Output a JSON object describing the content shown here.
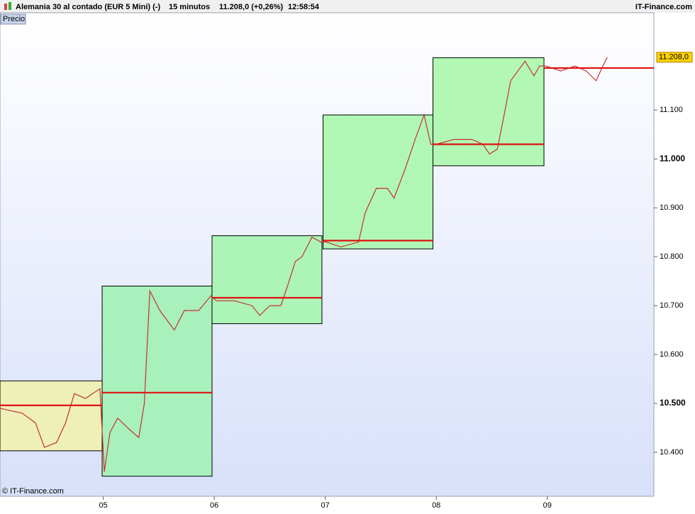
{
  "header": {
    "instrument": "Alemania 30 al contado (EUR 5 Mini) (-)",
    "interval": "15 minutos",
    "quote": "11.208,0 (+0,26%)",
    "time": "12:58:54",
    "brand": "IT-Finance.com"
  },
  "chart_data": {
    "type": "line",
    "panel_label": "Precio",
    "watermark": "© IT-Finance.com",
    "color": "#c83030",
    "x": [
      4.07,
      4.27,
      4.39,
      4.47,
      4.58,
      4.66,
      4.74,
      4.84,
      4.97,
      5.01,
      5.06,
      5.13,
      5.22,
      5.32,
      5.37,
      5.42,
      5.51,
      5.64,
      5.73,
      5.86,
      5.97,
      6.02,
      6.18,
      6.34,
      6.41,
      6.5,
      6.6,
      6.66,
      6.73,
      6.79,
      6.88,
      6.96,
      7.01,
      7.14,
      7.3,
      7.36,
      7.46,
      7.56,
      7.62,
      7.72,
      7.81,
      7.89,
      7.95,
      8.0,
      8.16,
      8.32,
      8.42,
      8.48,
      8.55,
      8.62,
      8.67,
      8.8,
      8.88,
      8.93,
      8.99,
      9.12,
      9.25,
      9.35,
      9.44,
      9.5,
      9.54
    ],
    "values": [
      10490,
      10480,
      10460,
      10410,
      10420,
      10460,
      10520,
      10510,
      10530,
      10360,
      10440,
      10470,
      10450,
      10430,
      10500,
      10730,
      10690,
      10650,
      10690,
      10690,
      10720,
      10710,
      10710,
      10700,
      10680,
      10700,
      10700,
      10740,
      10790,
      10800,
      10840,
      10830,
      10830,
      10820,
      10830,
      10890,
      10940,
      10940,
      10920,
      10980,
      11040,
      11090,
      11030,
      11030,
      11040,
      11040,
      11030,
      11010,
      11020,
      11100,
      11160,
      11200,
      11170,
      11190,
      11190,
      11180,
      11190,
      11180,
      11160,
      11190,
      11208
    ],
    "ranges": [
      {
        "start": 4.07,
        "end": 4.99,
        "high": 10546,
        "low": 10403,
        "mid": 10496,
        "color": "#eef0b8"
      },
      {
        "start": 4.99,
        "end": 5.98,
        "high": 10740,
        "low": 10351,
        "mid": 10522,
        "color": "#a8f0bc"
      },
      {
        "start": 5.98,
        "end": 6.97,
        "high": 10843,
        "low": 10663,
        "mid": 10716,
        "color": "#acf4b8"
      },
      {
        "start": 6.98,
        "end": 7.97,
        "high": 11090,
        "low": 10816,
        "mid": 10833,
        "color": "#b0f7b6"
      },
      {
        "start": 7.97,
        "end": 8.97,
        "high": 11207,
        "low": 10986,
        "mid": 11030,
        "color": "#b2f8b4"
      }
    ],
    "current_mid": {
      "start": 8.97,
      "end": 9.96,
      "value": 11186
    },
    "mid_color": "#e01010",
    "last": {
      "value": 11208,
      "label": "11.208,0"
    },
    "xlim": [
      4.07,
      9.96
    ],
    "xticks": [
      {
        "value": 5,
        "label": "05"
      },
      {
        "value": 6,
        "label": "06"
      },
      {
        "value": 7,
        "label": "07"
      },
      {
        "value": 8,
        "label": "08"
      },
      {
        "value": 9,
        "label": "09"
      }
    ],
    "ylim": [
      10310,
      11299
    ],
    "yticks": [
      {
        "value": 10400,
        "label": "10.400"
      },
      {
        "value": 10500,
        "label": "10.500"
      },
      {
        "value": 10600,
        "label": "10.600"
      },
      {
        "value": 10700,
        "label": "10.700"
      },
      {
        "value": 10800,
        "label": "10.800"
      },
      {
        "value": 10900,
        "label": "10.900"
      },
      {
        "value": 11000,
        "label": "11.000"
      },
      {
        "value": 11100,
        "label": "11.100"
      }
    ],
    "bold_yticks": [
      10500,
      11000
    ]
  }
}
